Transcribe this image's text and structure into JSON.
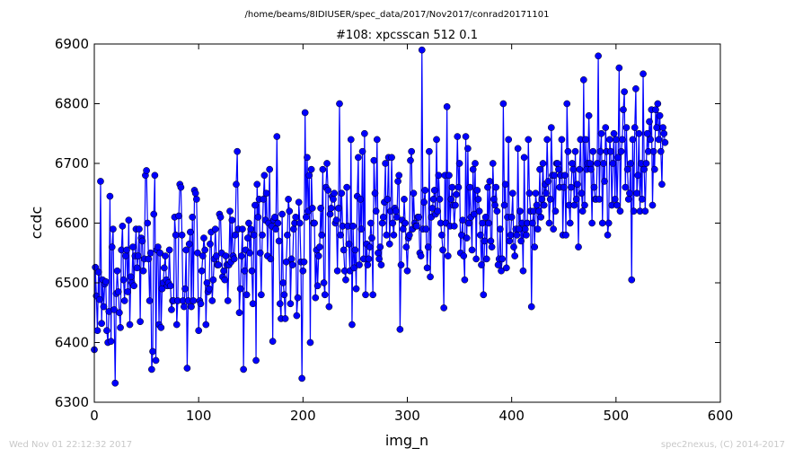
{
  "header": {
    "path": "/home/beams/8IDIUSER/spec_data/2017/Nov2017/conrad20171101"
  },
  "footer": {
    "timestamp": "Wed Nov 01 22:12:32 2017",
    "credit": "spec2nexus, (C) 2014-2017"
  },
  "chart_data": {
    "type": "line",
    "title": "#108: xpcsscan 512 0.1",
    "xlabel": "img_n",
    "ylabel": "ccdc",
    "xlim": [
      0,
      600
    ],
    "ylim": [
      6300,
      6900
    ],
    "xticks": [
      0,
      100,
      200,
      300,
      400,
      500,
      600
    ],
    "yticks": [
      6300,
      6400,
      6500,
      6600,
      6700,
      6800,
      6900
    ],
    "grid": false,
    "markers": "circle",
    "line_color": "#0000ff",
    "series": [
      {
        "x_start": 0,
        "x_step": 1,
        "values": [
          6388,
          6526,
          6478,
          6420,
          6518,
          6472,
          6670,
          6432,
          6505,
          6460,
          6498,
          6502,
          6420,
          6400,
          6452,
          6645,
          6402,
          6560,
          6590,
          6455,
          6332,
          6482,
          6520,
          6485,
          6450,
          6425,
          6555,
          6595,
          6505,
          6470,
          6545,
          6555,
          6485,
          6605,
          6430,
          6510,
          6500,
          6560,
          6495,
          6545,
          6590,
          6525,
          6545,
          6590,
          6435,
          6575,
          6570,
          6520,
          6540,
          6680,
          6688,
          6600,
          6540,
          6470,
          6550,
          6355,
          6385,
          6615,
          6680,
          6370,
          6555,
          6560,
          6430,
          6550,
          6425,
          6490,
          6500,
          6525,
          6545,
          6505,
          6495,
          6500,
          6555,
          6495,
          6455,
          6470,
          6470,
          6610,
          6580,
          6430,
          6470,
          6612,
          6665,
          6660,
          6580,
          6470,
          6460,
          6490,
          6555,
          6357,
          6470,
          6565,
          6585,
          6460,
          6610,
          6470,
          6655,
          6650,
          6640,
          6550,
          6420,
          6470,
          6465,
          6520,
          6545,
          6575,
          6555,
          6430,
          6500,
          6485,
          6490,
          6565,
          6585,
          6470,
          6505,
          6540,
          6590,
          6545,
          6530,
          6530,
          6615,
          6610,
          6550,
          6510,
          6520,
          6505,
          6545,
          6530,
          6470,
          6530,
          6620,
          6535,
          6605,
          6545,
          6540,
          6580,
          6665,
          6720,
          6590,
          6450,
          6490,
          6545,
          6590,
          6355,
          6520,
          6555,
          6480,
          6575,
          6600,
          6550,
          6590,
          6520,
          6465,
          6580,
          6630,
          6370,
          6665,
          6610,
          6640,
          6550,
          6480,
          6580,
          6640,
          6680,
          6605,
          6650,
          6545,
          6600,
          6690,
          6540,
          6595,
          6402,
          6605,
          6610,
          6590,
          6745,
          6600,
          6570,
          6465,
          6440,
          6615,
          6500,
          6480,
          6440,
          6535,
          6580,
          6640,
          6620,
          6465,
          6540,
          6530,
          6590,
          6600,
          6610,
          6445,
          6475,
          6635,
          6600,
          6535,
          6340,
          6520,
          6535,
          6785,
          6610,
          6710,
          6620,
          6680,
          6400,
          6690,
          6625,
          6600,
          6600,
          6475,
          6555,
          6495,
          6545,
          6560,
          6625,
          6580,
          6690,
          6500,
          6480,
          6660,
          6700,
          6655,
          6460,
          6615,
          6625,
          6645,
          6640,
          6650,
          6600,
          6605,
          6520,
          6625,
          6800,
          6580,
          6650,
          6595,
          6555,
          6520,
          6505,
          6660,
          6595,
          6565,
          6520,
          6740,
          6430,
          6595,
          6525,
          6555,
          6490,
          6645,
          6710,
          6530,
          6640,
          6590,
          6720,
          6540,
          6750,
          6480,
          6565,
          6530,
          6540,
          6560,
          6600,
          6575,
          6480,
          6705,
          6650,
          6620,
          6740,
          6550,
          6540,
          6560,
          6530,
          6600,
          6610,
          6635,
          6700,
          6580,
          6640,
          6710,
          6565,
          6620,
          6710,
          6600,
          6580,
          6625,
          6620,
          6610,
          6670,
          6680,
          6422,
          6530,
          6605,
          6590,
          6640,
          6600,
          6560,
          6520,
          6575,
          6580,
          6705,
          6720,
          6590,
          6650,
          6600,
          6595,
          6595,
          6610,
          6610,
          6550,
          6545,
          6890,
          6590,
          6635,
          6655,
          6590,
          6525,
          6560,
          6720,
          6510,
          6610,
          6625,
          6640,
          6655,
          6615,
          6740,
          6620,
          6680,
          6640,
          6600,
          6580,
          6555,
          6458,
          6680,
          6600,
          6795,
          6545,
          6680,
          6595,
          6640,
          6660,
          6630,
          6595,
          6630,
          6648,
          6745,
          6660,
          6700,
          6550,
          6580,
          6605,
          6545,
          6505,
          6745,
          6575,
          6725,
          6600,
          6660,
          6610,
          6555,
          6690,
          6615,
          6700,
          6540,
          6655,
          6640,
          6620,
          6580,
          6530,
          6600,
          6480,
          6570,
          6610,
          6540,
          6660,
          6600,
          6670,
          6570,
          6560,
          6700,
          6640,
          6630,
          6660,
          6620,
          6530,
          6540,
          6590,
          6520,
          6540,
          6800,
          6630,
          6665,
          6525,
          6610,
          6740,
          6570,
          6580,
          6610,
          6650,
          6560,
          6545,
          6590,
          6580,
          6725,
          6590,
          6620,
          6570,
          6600,
          6520,
          6710,
          6590,
          6580,
          6600,
          6740,
          6650,
          6620,
          6460,
          6600,
          6620,
          6560,
          6650,
          6630,
          6590,
          6620,
          6690,
          6610,
          6640,
          6700,
          6630,
          6665,
          6650,
          6740,
          6670,
          6600,
          6640,
          6760,
          6680,
          6590,
          6680,
          6620,
          6700,
          6700,
          6690,
          6660,
          6680,
          6740,
          6580,
          6660,
          6680,
          6580,
          6800,
          6720,
          6630,
          6600,
          6660,
          6700,
          6690,
          6630,
          6720,
          6640,
          6665,
          6560,
          6690,
          6740,
          6650,
          6620,
          6840,
          6630,
          6740,
          6690,
          6700,
          6780,
          6700,
          6690,
          6600,
          6720,
          6660,
          6640,
          6640,
          6700,
          6880,
          6640,
          6720,
          6750,
          6600,
          6700,
          6670,
          6760,
          6720,
          6580,
          6600,
          6740,
          6720,
          6630,
          6700,
          6750,
          6640,
          6740,
          6630,
          6710,
          6860,
          6620,
          6720,
          6740,
          6790,
          6820,
          6660,
          6760,
          6690,
          6640,
          6650,
          6700,
          6505,
          6740,
          6620,
          6760,
          6825,
          6650,
          6680,
          6750,
          6620,
          6700,
          6640,
          6850,
          6690,
          6620,
          6700,
          6750,
          6720,
          6770,
          6740,
          6790,
          6630,
          6720,
          6690,
          6790,
          6760,
          6800,
          6740,
          6780,
          6720,
          6665,
          6760,
          6750,
          6735
        ]
      }
    ]
  }
}
